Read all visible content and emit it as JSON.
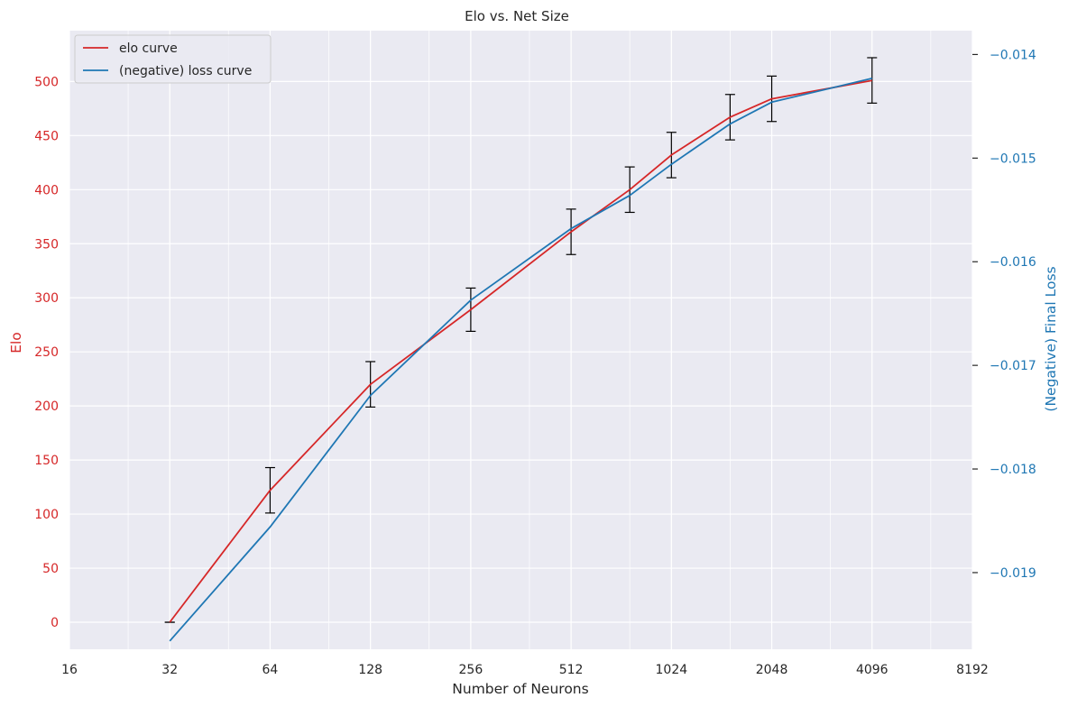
{
  "chart_data": {
    "type": "line",
    "title": "Elo vs. Net Size",
    "xlabel": "Number of Neurons",
    "ylabel_left": "Elo",
    "ylabel_right": "(Negative) Final Loss",
    "x_scale": "log2",
    "xlim": [
      16,
      8192
    ],
    "xticks": [
      "16",
      "32",
      "64",
      "128",
      "256",
      "512",
      "1024",
      "2048",
      "4096",
      "8192"
    ],
    "ylim_left": [
      -25,
      547
    ],
    "yticks_left": [
      "0",
      "50",
      "100",
      "150",
      "200",
      "250",
      "300",
      "350",
      "400",
      "450",
      "500"
    ],
    "ylim_right": [
      -0.01974,
      -0.01377
    ],
    "yticks_right": [
      "−0.019",
      "−0.018",
      "−0.017",
      "−0.016",
      "−0.015",
      "−0.014"
    ],
    "grid": true,
    "legend_position": "top-left",
    "series": [
      {
        "name": "elo curve",
        "axis": "left",
        "color": "#d62728",
        "x": [
          32,
          64,
          128,
          256,
          512,
          768,
          1024,
          1536,
          2048,
          4096
        ],
        "y": [
          0,
          122,
          220,
          289,
          361,
          400,
          432,
          467,
          484,
          501
        ],
        "error": [
          0,
          21,
          21,
          20,
          21,
          21,
          21,
          21,
          21,
          21
        ]
      },
      {
        "name": "(negative) loss curve",
        "axis": "right",
        "color": "#1f77b4",
        "x": [
          32,
          64,
          128,
          256,
          512,
          768,
          1024,
          1536,
          2048,
          4096
        ],
        "y": [
          -0.01966,
          -0.01856,
          -0.01729,
          -0.01637,
          -0.01568,
          -0.01536,
          -0.01506,
          -0.01467,
          -0.01446,
          -0.01423
        ]
      }
    ]
  }
}
